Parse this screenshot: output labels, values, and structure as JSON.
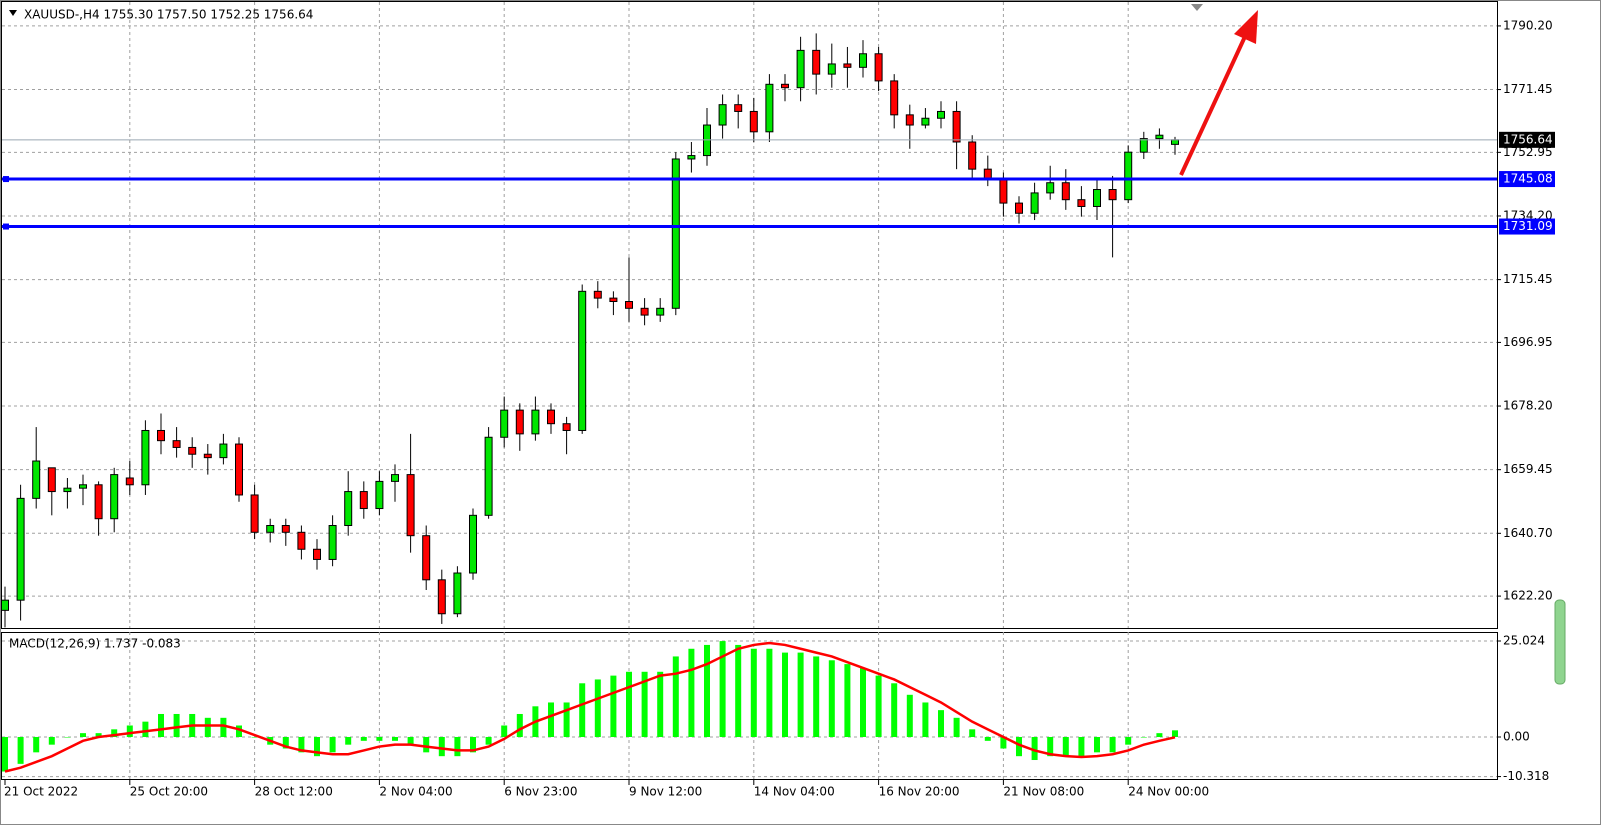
{
  "chart_data": [
    {
      "type": "candlestick",
      "title": "XAUUSD-,H4  1755.30 1757.50 1752.25 1756.64",
      "categories": [
        "21 Oct 2022",
        null,
        null,
        null,
        null,
        null,
        null,
        null,
        "25 Oct 20:00",
        null,
        null,
        null,
        null,
        null,
        null,
        null,
        "28 Oct 12:00",
        null,
        null,
        null,
        null,
        null,
        null,
        null,
        "2 Nov 04:00",
        null,
        null,
        null,
        null,
        null,
        null,
        null,
        "6 Nov 23:00",
        null,
        null,
        null,
        null,
        null,
        null,
        null,
        "9 Nov 12:00",
        null,
        null,
        null,
        null,
        null,
        null,
        null,
        "14 Nov 04:00",
        null,
        null,
        null,
        null,
        null,
        null,
        null,
        "16 Nov 20:00",
        null,
        null,
        null,
        null,
        null,
        null,
        null,
        "21 Nov 08:00",
        null,
        null,
        null,
        null,
        null,
        null,
        null,
        "24 Nov 00:00",
        null,
        null,
        null
      ],
      "open": [
        1618,
        1621,
        1651,
        1660,
        1653,
        1654,
        1655,
        1645,
        1657,
        1655,
        1671,
        1668,
        1666,
        1664,
        1663,
        1667,
        1652,
        1641,
        1643,
        1641,
        1636,
        1633,
        1643,
        1653,
        1648,
        1656,
        1658,
        1640,
        1627,
        1617,
        1629,
        1646,
        1669,
        1677,
        1670,
        1677,
        1673,
        1671,
        1712,
        1710,
        1709,
        1707,
        1705,
        1707,
        1751,
        1752,
        1761,
        1767,
        1765,
        1759,
        1773,
        1772,
        1783,
        1776,
        1779,
        1778,
        1782,
        1774,
        1764,
        1761,
        1763,
        1765,
        1756,
        1748,
        1745,
        1738,
        1735,
        1741,
        1744,
        1739,
        1737,
        1742,
        1739,
        1753,
        1757,
        1755.3
      ],
      "high": [
        1625,
        1655,
        1672,
        1660,
        1657,
        1658,
        1656,
        1660,
        1662,
        1674,
        1676,
        1672,
        1669,
        1667,
        1670,
        1669,
        1655,
        1645,
        1645,
        1643,
        1639,
        1646,
        1659,
        1656,
        1659,
        1661,
        1670,
        1643,
        1630,
        1631,
        1648,
        1672,
        1681,
        1679,
        1681,
        1679,
        1675,
        1714,
        1715,
        1712,
        1722,
        1710,
        1710,
        1753,
        1756,
        1766,
        1770,
        1770,
        1769,
        1776,
        1776,
        1787,
        1788,
        1785,
        1784,
        1786,
        1784,
        1776,
        1767,
        1766,
        1768,
        1768,
        1758,
        1752,
        1747,
        1740,
        1744,
        1749,
        1748,
        1743,
        1745,
        1746,
        1755,
        1759,
        1760,
        1757.5
      ],
      "low": [
        1613,
        1615,
        1648,
        1646,
        1648,
        1649,
        1640,
        1641,
        1652,
        1652,
        1664,
        1663,
        1660,
        1658,
        1661,
        1650,
        1639,
        1638,
        1637,
        1633,
        1630,
        1631,
        1640,
        1645,
        1646,
        1650,
        1635,
        1624,
        1614,
        1616,
        1627,
        1645,
        1666,
        1665,
        1668,
        1670,
        1664,
        1670,
        1707,
        1705,
        1703,
        1702,
        1703,
        1705,
        1747,
        1749,
        1757,
        1760,
        1756,
        1756,
        1768,
        1768,
        1770,
        1772,
        1772,
        1775,
        1771,
        1760,
        1754,
        1760,
        1760,
        1748,
        1745,
        1743,
        1734,
        1732,
        1733,
        1739,
        1736,
        1734,
        1733,
        1722,
        1738,
        1751,
        1754,
        1752.25
      ],
      "close": [
        1621,
        1651,
        1662,
        1653,
        1654,
        1655,
        1645,
        1658,
        1655,
        1671,
        1668,
        1666,
        1664,
        1663,
        1667,
        1652,
        1641,
        1643,
        1641,
        1636,
        1633,
        1643,
        1653,
        1648,
        1656,
        1658,
        1640,
        1627,
        1617,
        1629,
        1646,
        1669,
        1677,
        1670,
        1677,
        1673,
        1671,
        1712,
        1710,
        1709,
        1707,
        1705,
        1707,
        1751,
        1752,
        1761,
        1767,
        1765,
        1759,
        1773,
        1772,
        1783,
        1776,
        1779,
        1778,
        1782,
        1774,
        1764,
        1761,
        1763,
        1765,
        1756,
        1748,
        1745,
        1738,
        1735,
        1741,
        1744,
        1739,
        1737,
        1742,
        1739,
        1753,
        1757,
        1758,
        1756.64
      ],
      "up_color": "#00e600",
      "down_color": "#ff0000",
      "levels": [
        {
          "value": 1745.08,
          "color": "#0000ff"
        },
        {
          "value": 1731.09,
          "color": "#0000ff"
        }
      ],
      "ylim": [
        1612.8,
        1797.25
      ],
      "yticks": [
        {
          "value": 1790.2,
          "label": "1790.20"
        },
        1771.45,
        1752.95,
        {
          "value": 1734.2,
          "label": "1734.20"
        },
        1715.45,
        1696.95,
        {
          "value": 1678.2,
          "label": "1678.20"
        },
        1659.45,
        {
          "value": 1640.7,
          "label": "1640.70"
        },
        {
          "value": 1622.2,
          "label": "1622.20"
        }
      ],
      "grid": true
    },
    {
      "type": "macd",
      "title": "MACD(12,26,9) 1.737 -0.083",
      "histogram": {
        "color": "#00ff00",
        "values": [
          -9,
          -7,
          -4,
          -2,
          0,
          1,
          1,
          2,
          3,
          4,
          6,
          6,
          6,
          5,
          5,
          3,
          0,
          -2,
          -3,
          -4,
          -5,
          -4,
          -2,
          -1,
          -1,
          -1,
          -2,
          -4,
          -5,
          -5,
          -4,
          -2,
          3,
          6,
          8,
          9,
          9,
          14,
          15,
          16,
          17,
          17,
          17,
          21,
          23,
          24,
          25,
          24,
          23,
          23,
          22,
          22,
          21,
          20,
          19,
          18,
          16,
          14,
          11,
          9,
          7,
          5,
          2,
          -1,
          -3,
          -5,
          -6,
          -5,
          -5,
          -5,
          -4,
          -4,
          -2,
          0,
          1,
          1.737
        ]
      },
      "signal": {
        "color": "#ff0000",
        "values": [
          -9,
          -8,
          -6.5,
          -5,
          -3,
          -1,
          0,
          0.5,
          1,
          1.5,
          2,
          2.5,
          3,
          3,
          3,
          2,
          0.5,
          -1,
          -2.5,
          -3.5,
          -4,
          -4.5,
          -4.5,
          -3.5,
          -2.5,
          -2,
          -2,
          -2.5,
          -3,
          -3.5,
          -3.5,
          -2.5,
          -0.5,
          2,
          4,
          5.5,
          7,
          8.5,
          10,
          11.5,
          13,
          14.5,
          16,
          16.5,
          17.5,
          19,
          21,
          23,
          24,
          24.5,
          24,
          23,
          22,
          21,
          19.5,
          18,
          16.5,
          15,
          13,
          11,
          9,
          6.5,
          4,
          2,
          0,
          -2,
          -3.5,
          -4.5,
          -5,
          -5.2,
          -5,
          -4.5,
          -3.5,
          -2,
          -1,
          -0.083
        ]
      },
      "ylim": [
        -11.21,
        27.37
      ],
      "yticks": [
        25.024,
        {
          "value": 0,
          "label": "0.00"
        },
        -10.318
      ],
      "grid": true
    }
  ]
}
